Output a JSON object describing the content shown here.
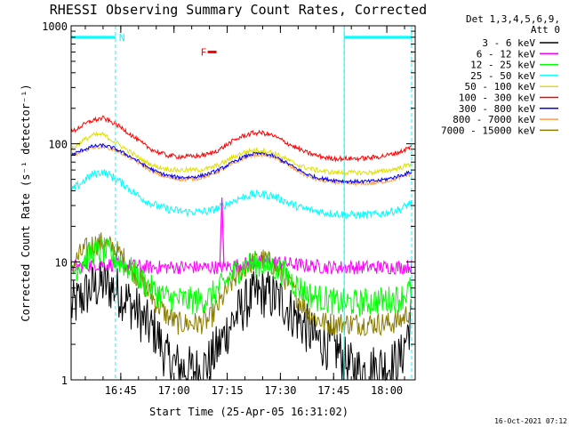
{
  "chart_data": {
    "type": "line",
    "title": "RHESSI Observing Summary Count Rates, Corrected",
    "xlabel": "Start Time (25-Apr-05 16:31:02)",
    "ylabel": "Corrected Count Rate (s⁻¹ detector⁻¹)",
    "yscale": "log",
    "ylim": [
      1,
      1000
    ],
    "xlim": [
      "16:31",
      "18:08"
    ],
    "grid": false,
    "legend_placement": "right",
    "detector_info": [
      "Det 1,3,4,5,6,9,",
      "Att 0"
    ],
    "y_ticks": [
      {
        "value": 1,
        "label": "1"
      },
      {
        "value": 10,
        "label": "10"
      },
      {
        "value": 100,
        "label": "100"
      },
      {
        "value": 1000,
        "label": "1000"
      }
    ],
    "x_ticks": [
      {
        "minute": 14,
        "label": "16:45"
      },
      {
        "minute": 29,
        "label": "17:00"
      },
      {
        "minute": 44,
        "label": "17:15"
      },
      {
        "minute": 59,
        "label": "17:30"
      },
      {
        "minute": 74,
        "label": "17:45"
      },
      {
        "minute": 89,
        "label": "18:00"
      }
    ],
    "x_minutes_from_start": [
      0,
      3,
      6,
      9,
      12,
      15,
      18,
      21,
      24,
      27,
      30,
      33,
      36,
      39,
      42,
      45,
      48,
      51,
      54,
      57,
      60,
      63,
      66,
      69,
      72,
      75,
      78,
      81,
      84,
      87,
      90,
      93,
      96
    ],
    "series": [
      {
        "name": "3 - 6 keV",
        "color": "#000000",
        "values": [
          4,
          5,
          6,
          6.5,
          6,
          5,
          4,
          3,
          2.5,
          1.5,
          1.3,
          1.2,
          1.2,
          1.4,
          2,
          3,
          4,
          5,
          5.5,
          5,
          4.5,
          3.5,
          2.8,
          2.2,
          2,
          1.8,
          1.3,
          1.2,
          1.2,
          1.3,
          1.3,
          1.5,
          3.5
        ]
      },
      {
        "name": "6 - 12 keV",
        "color": "#ff00ff",
        "values": [
          9,
          9.2,
          9.5,
          9.5,
          9.5,
          9.3,
          9.2,
          9,
          9,
          9,
          9,
          9,
          9,
          9,
          9,
          9.2,
          9.5,
          9.8,
          10,
          10,
          9.8,
          9.5,
          9.3,
          9.2,
          9,
          9,
          9,
          9,
          9,
          9,
          9,
          9,
          9.2
        ]
      },
      {
        "name": "12 - 25 keV",
        "color": "#00ff00",
        "values": [
          8,
          10,
          12,
          12.5,
          11,
          9.5,
          8,
          6.5,
          5.5,
          5,
          4.8,
          4.7,
          4.7,
          5,
          6,
          7.5,
          9,
          9.5,
          9.5,
          9,
          8,
          6.5,
          5.5,
          5,
          4.8,
          4.5,
          4.5,
          4.5,
          4.6,
          4.7,
          4.8,
          5,
          6
        ]
      },
      {
        "name": "25 - 50 keV",
        "color": "#00ffff",
        "values": [
          40,
          47,
          55,
          58,
          52,
          45,
          38,
          33,
          30,
          28,
          27,
          26.5,
          26.5,
          27,
          29,
          32,
          35,
          37,
          37.5,
          36,
          33,
          30,
          28,
          27,
          26,
          25.5,
          25,
          25,
          25,
          25.5,
          26.5,
          28,
          32
        ]
      },
      {
        "name": "50 - 100 keV",
        "color": "#e0e000",
        "values": [
          90,
          105,
          118,
          120,
          105,
          92,
          80,
          70,
          64,
          61,
          60,
          60,
          60,
          62,
          67,
          75,
          83,
          88,
          88,
          84,
          76,
          68,
          63,
          60,
          58,
          57,
          57,
          57,
          57,
          58,
          60,
          63,
          68
        ]
      },
      {
        "name": "100 - 300 keV",
        "color": "#ff0000",
        "values": [
          125,
          142,
          158,
          165,
          150,
          132,
          112,
          96,
          86,
          80,
          78,
          78,
          79,
          82,
          90,
          103,
          115,
          123,
          124,
          117,
          105,
          94,
          85,
          80,
          76,
          75,
          75,
          75,
          76,
          78,
          81,
          86,
          95
        ]
      },
      {
        "name": "300 - 800 keV",
        "color": "#0000ff",
        "values": [
          80,
          88,
          95,
          97,
          92,
          83,
          74,
          65,
          58,
          54,
          52,
          52,
          53,
          56,
          61,
          68,
          76,
          82,
          83,
          79,
          71,
          63,
          56,
          52,
          50,
          49,
          48,
          48,
          48,
          49,
          51,
          54,
          58
        ]
      },
      {
        "name": "800 - 7000 keV",
        "color": "#ff9f3f",
        "values": [
          78,
          86,
          93,
          95,
          90,
          81,
          72,
          63,
          56,
          52,
          50,
          50,
          51,
          54,
          59,
          66,
          74,
          80,
          81,
          77,
          69,
          61,
          54,
          50,
          48,
          47,
          46,
          46,
          46,
          47,
          49,
          52,
          56
        ]
      },
      {
        "name": "7000 - 15000 keV",
        "color": "#8b7d00",
        "values": [
          9,
          12,
          14,
          14.5,
          13,
          10.5,
          8,
          6,
          4.5,
          3.5,
          3,
          3,
          3,
          3.2,
          4.5,
          6.5,
          8.5,
          10,
          10.5,
          9.5,
          7.5,
          5.5,
          4,
          3.3,
          3,
          3,
          3,
          3,
          3,
          3,
          3,
          3.2,
          4
        ]
      }
    ],
    "spike": {
      "minute": 42.5,
      "peak": 35,
      "color": "#ff00ff"
    },
    "annotations": [
      {
        "label": "N",
        "color": "#00ffff",
        "bar_from_minute": 0,
        "bar_to_minute": 12.5,
        "y": 800
      },
      {
        "label": "",
        "color": "#00ffff",
        "bar_from_minute": 77,
        "bar_to_minute": 96,
        "y": 800
      },
      {
        "label": "F",
        "color": "#ff0000",
        "bar_from_minute": 38.5,
        "bar_to_minute": 41,
        "y": 600
      }
    ],
    "saa_boundaries_minutes": [
      12.5,
      77,
      96
    ]
  },
  "footer": {
    "timestamp": "16-Oct-2021 07:12"
  },
  "colors": {
    "axis": "#000000",
    "background": "#ffffff"
  }
}
